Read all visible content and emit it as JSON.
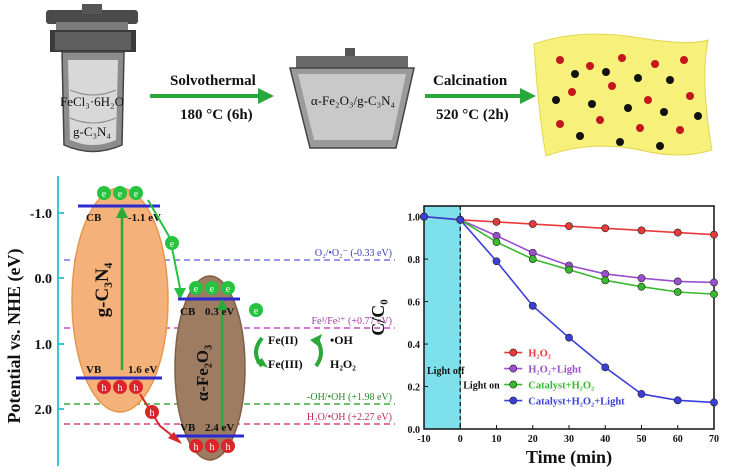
{
  "synthesis": {
    "autoclave_line1": "FeCl₃·6H₂O",
    "autoclave_line2": "g-C₃N₄",
    "step1_label": "Solvothermal",
    "step1_cond": "180 °C (6h)",
    "intermediate_label": "α-Fe₂O₃/g-C₃N₄",
    "step2_label": "Calcination",
    "step2_cond": "520 °C (2h)"
  },
  "energy_diagram": {
    "y_axis_label": "Potential vs. NHE (eV)",
    "y_ticks": [
      "-1.0",
      "0.0",
      "1.0",
      "2.0"
    ],
    "gcn_label": "g-C₃N₄",
    "fe_label": "α-Fe₂O₃",
    "gcn_cb_label": "CB",
    "gcn_cb_value": "-1.1 eV",
    "gcn_vb_label": "VB",
    "gcn_vb_value": "1.6 eV",
    "fe_cb_label": "CB",
    "fe_cb_value": "0.3 eV",
    "fe_vb_label": "VB",
    "fe_vb_value": "2.4 eV",
    "electron_symbol": "e",
    "hole_symbol": "h",
    "redox1": "O₂/•O₂⁻ (-0.33 eV)",
    "redox2": "Fe³/Fe²⁺ (+0.77 eV)",
    "redox3": "-OH/•OH (+1.98 eV)",
    "redox4": "H₂O/•OH (+2.27 eV)",
    "fe2_label": "Fe(II)",
    "fe3_label": "Fe(III)",
    "oh_label": "•OH",
    "h2o2_label": "H₂O₂",
    "colors": {
      "gcn": "#f4b27a",
      "fe": "#9e7c62",
      "electron": "#27c240",
      "hole": "#d8262a"
    }
  },
  "chart_data": {
    "type": "line",
    "ylabel": "C/C₀",
    "xlabel": "Time (min)",
    "xlim": [
      -10,
      70
    ],
    "ylim": [
      0.0,
      1.0
    ],
    "x_ticks": [
      "-10",
      "0",
      "10",
      "20",
      "30",
      "40",
      "50",
      "60",
      "70"
    ],
    "y_ticks": [
      "0.0",
      "0.2",
      "0.4",
      "0.6",
      "0.8",
      "1.0"
    ],
    "x": [
      -10,
      0,
      10,
      20,
      30,
      40,
      50,
      60,
      70
    ],
    "light_off_label": "Light off",
    "light_on_label": "Light on",
    "series": [
      {
        "name": "H₂O₂",
        "color": "#e8393b",
        "values": [
          1.0,
          0.985,
          0.975,
          0.965,
          0.955,
          0.945,
          0.935,
          0.925,
          0.915
        ]
      },
      {
        "name": "H₂O₂+Light",
        "color": "#9a4fd0",
        "values": [
          1.0,
          0.985,
          0.91,
          0.83,
          0.77,
          0.73,
          0.71,
          0.695,
          0.69
        ]
      },
      {
        "name": "Catalyst+H₂O₂",
        "color": "#38b82c",
        "values": [
          1.0,
          0.985,
          0.88,
          0.8,
          0.75,
          0.7,
          0.67,
          0.645,
          0.635
        ]
      },
      {
        "name": "Catalyst+H₂O₂+Light",
        "color": "#3b3fd8",
        "values": [
          1.0,
          0.985,
          0.79,
          0.58,
          0.43,
          0.29,
          0.165,
          0.135,
          0.125
        ]
      }
    ]
  }
}
